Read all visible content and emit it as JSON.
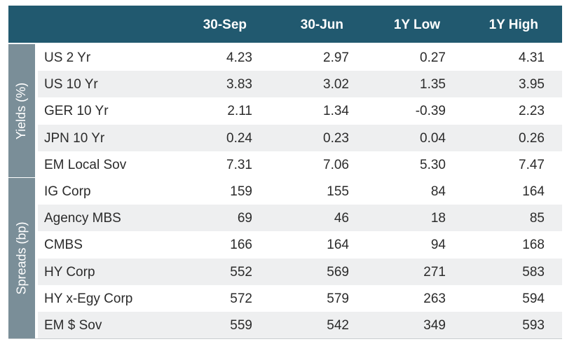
{
  "header": {
    "columns": [
      "30-Sep",
      "30-Jun",
      "1Y Low",
      "1Y High"
    ]
  },
  "groups": [
    {
      "label": "Yields (%)",
      "rows": [
        {
          "name": "US 2 Yr",
          "values": [
            "4.23",
            "2.97",
            "0.27",
            "4.31"
          ]
        },
        {
          "name": "US 10 Yr",
          "values": [
            "3.83",
            "3.02",
            "1.35",
            "3.95"
          ]
        },
        {
          "name": "GER 10 Yr",
          "values": [
            "2.11",
            "1.34",
            "-0.39",
            "2.23"
          ]
        },
        {
          "name": "JPN 10 Yr",
          "values": [
            "0.24",
            "0.23",
            "0.04",
            "0.26"
          ]
        },
        {
          "name": "EM Local Sov",
          "values": [
            "7.31",
            "7.06",
            "5.30",
            "7.47"
          ]
        }
      ]
    },
    {
      "label": "Spreads (bp)",
      "rows": [
        {
          "name": "IG Corp",
          "values": [
            "159",
            "155",
            "84",
            "164"
          ]
        },
        {
          "name": "Agency MBS",
          "values": [
            "69",
            "46",
            "18",
            "85"
          ]
        },
        {
          "name": "CMBS",
          "values": [
            "166",
            "164",
            "94",
            "168"
          ]
        },
        {
          "name": "HY Corp",
          "values": [
            "552",
            "569",
            "271",
            "583"
          ]
        },
        {
          "name": "HY x-Egy Corp",
          "values": [
            "572",
            "579",
            "263",
            "594"
          ]
        },
        {
          "name": "EM $ Sov",
          "values": [
            "559",
            "542",
            "349",
            "593"
          ]
        }
      ]
    }
  ],
  "colors": {
    "header_bg": "#21596f",
    "group_band": "#7a8e98",
    "alt_row": "#eeeff0"
  }
}
